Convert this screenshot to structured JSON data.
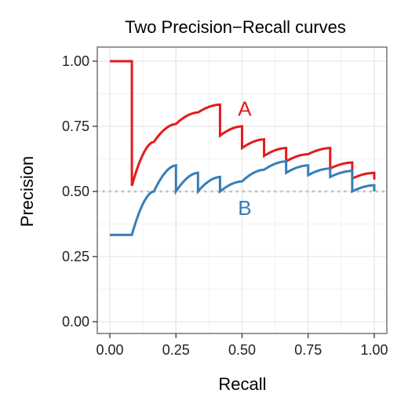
{
  "chart_data": {
    "type": "line",
    "title": "Two Precision−Recall curves",
    "xlabel": "Recall",
    "ylabel": "Precision",
    "xlim": [
      0,
      1
    ],
    "ylim": [
      0,
      1
    ],
    "xticks": [
      "0.00",
      "0.25",
      "0.50",
      "0.75",
      "1.00"
    ],
    "yticks": [
      "0.00",
      "0.25",
      "0.50",
      "0.75",
      "1.00"
    ],
    "grid": true,
    "baseline": {
      "y": 0.5,
      "style": "dotted",
      "color": "#bdbdbd"
    },
    "annotations": [
      {
        "text": "A",
        "x": 0.51,
        "y": 0.79,
        "color": "#e41a1c"
      },
      {
        "text": "B",
        "x": 0.51,
        "y": 0.41,
        "color": "#377eb8"
      }
    ],
    "series": [
      {
        "color": "#e41a1c",
        "x": [
          0,
          0.0833,
          0.0833,
          0.1667,
          0.25,
          0.3333,
          0.4167,
          0.4167,
          0.5,
          0.5,
          0.5833,
          0.5833,
          0.6667,
          0.6667,
          0.75,
          0.8333,
          0.8333,
          0.9167,
          0.9167,
          1.0,
          1.0
        ],
        "y": [
          1.0,
          1.0,
          0.5217,
          0.6903,
          0.7589,
          0.8032,
          0.8333,
          0.7143,
          0.75,
          0.6667,
          0.7,
          0.6364,
          0.6667,
          0.6154,
          0.6429,
          0.6667,
          0.5882,
          0.6111,
          0.55,
          0.5714,
          0.5455
        ]
      },
      {
        "color": "#377eb8",
        "x": [
          0,
          0.0833,
          0.1667,
          0.25,
          0.25,
          0.3333,
          0.3333,
          0.4167,
          0.4167,
          0.5,
          0.5833,
          0.6667,
          0.6667,
          0.75,
          0.75,
          0.8333,
          0.8333,
          0.9167,
          0.9167,
          1.0,
          1.0
        ],
        "y": [
          0.3333,
          0.3333,
          0.5,
          0.6,
          0.5,
          0.5714,
          0.5,
          0.5556,
          0.5,
          0.5385,
          0.5833,
          0.6154,
          0.5714,
          0.6,
          0.5625,
          0.5882,
          0.5556,
          0.5789,
          0.5,
          0.5238,
          0.5
        ]
      }
    ]
  }
}
